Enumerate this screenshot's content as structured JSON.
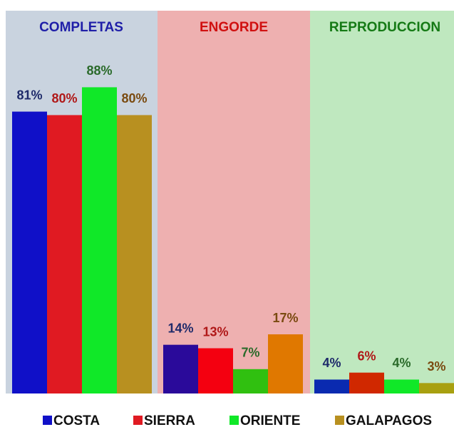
{
  "chart_data": {
    "type": "bar",
    "categories": [
      "COMPLETAS",
      "ENGORDE",
      "REPRODUCCION"
    ],
    "category_colors": [
      "#1f1fa8",
      "#d01010",
      "#157a15"
    ],
    "series": [
      {
        "name": "COSTA",
        "color": "#1010c8",
        "colors": [
          "#1010c8",
          "#2a0a9a",
          "#0a2ab0"
        ],
        "label_color": "#1e2a6a",
        "values": [
          81,
          14,
          4
        ],
        "value_labels": [
          "81%",
          "14%",
          "4%"
        ]
      },
      {
        "name": "SIERRA",
        "color": "#e01a22",
        "colors": [
          "#e01a22",
          "#f40010",
          "#d02800"
        ],
        "label_color": "#b01818",
        "values": [
          80,
          13,
          6
        ],
        "value_labels": [
          "80%",
          "13%",
          "6%"
        ]
      },
      {
        "name": "ORIENTE",
        "color": "#10e828",
        "colors": [
          "#10e828",
          "#30c010",
          "#10e828"
        ],
        "label_color": "#2a6a2a",
        "values": [
          88,
          7,
          4
        ],
        "value_labels": [
          "88%",
          "7%",
          "4%"
        ]
      },
      {
        "name": "GALAPAGOS",
        "color": "#b89020",
        "colors": [
          "#b89020",
          "#e07800",
          "#a8a010"
        ],
        "label_color": "#7a4a10",
        "values": [
          80,
          17,
          3
        ],
        "value_labels": [
          "80%",
          "17%",
          "3%"
        ]
      }
    ],
    "ylim": [
      0,
      110
    ]
  }
}
